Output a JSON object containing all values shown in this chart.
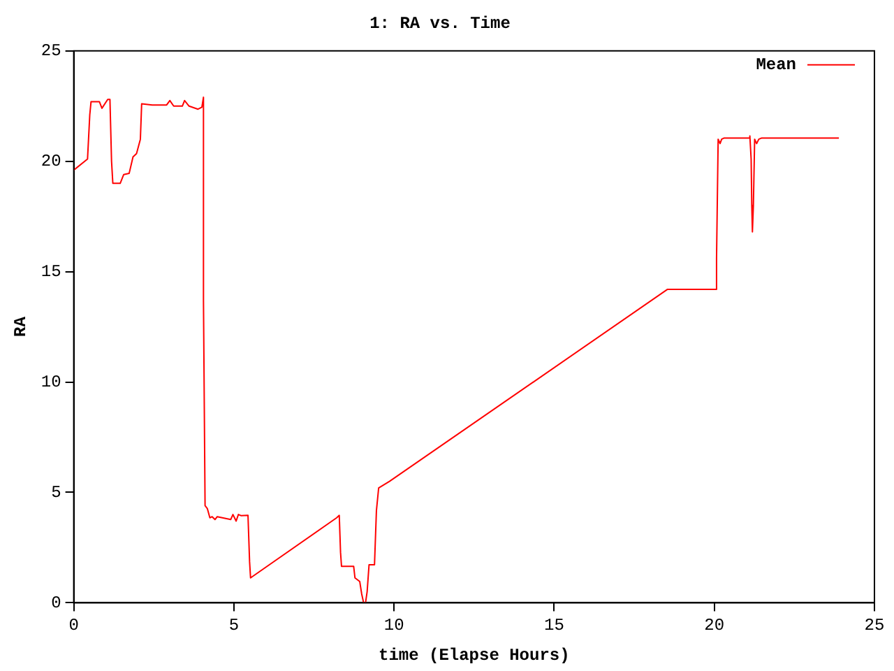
{
  "chart_data": {
    "type": "line",
    "title": "1: RA vs. Time",
    "xlabel": "time (Elapse Hours)",
    "ylabel": "RA",
    "xlim": [
      0,
      25
    ],
    "xticks": [
      0,
      5,
      10,
      15,
      20,
      25
    ],
    "ylim": [
      0,
      25
    ],
    "yticks": [
      0,
      5,
      10,
      15,
      20,
      25
    ],
    "grid": false,
    "legend": "top right",
    "marker": "none",
    "line_style": "solid",
    "series": [
      {
        "name": "Mean",
        "color": "#ff0000",
        "x": [
          0,
          0.43,
          0.5,
          0.54,
          0.8,
          0.88,
          1.06,
          1.13,
          1.18,
          1.22,
          1.45,
          1.56,
          1.73,
          1.85,
          1.96,
          2.08,
          2.12,
          2.45,
          2.9,
          3.0,
          3.12,
          3.39,
          3.46,
          3.6,
          3.88,
          4.0,
          4.05,
          4.05,
          4.1,
          4.17,
          4.25,
          4.32,
          4.41,
          4.48,
          4.9,
          4.97,
          5.07,
          5.14,
          5.22,
          5.44,
          5.49,
          5.52,
          8.21,
          8.29,
          8.33,
          8.36,
          8.74,
          8.78,
          8.93,
          8.99,
          9.05,
          9.11,
          9.16,
          9.22,
          9.39,
          9.45,
          9.52,
          9.86,
          18.54,
          20.03,
          20.07,
          20.12,
          20.18,
          20.23,
          20.3,
          21.08,
          21.11,
          21.15,
          21.17,
          21.19,
          21.22,
          21.26,
          21.32,
          21.39,
          21.47,
          23.89
        ],
        "values": [
          19.6,
          20.1,
          22.1,
          22.7,
          22.7,
          22.4,
          22.8,
          22.8,
          20.0,
          19.0,
          19.0,
          19.4,
          19.45,
          20.2,
          20.35,
          21.0,
          22.6,
          22.55,
          22.55,
          22.75,
          22.5,
          22.5,
          22.75,
          22.5,
          22.36,
          22.45,
          22.9,
          13.7,
          4.4,
          4.27,
          3.85,
          3.9,
          3.77,
          3.9,
          3.77,
          4.0,
          3.7,
          4.0,
          3.95,
          3.96,
          1.86,
          1.13,
          3.85,
          3.96,
          2.28,
          1.65,
          1.65,
          1.13,
          0.96,
          0.4,
          0,
          0,
          0.5,
          1.72,
          1.72,
          4.17,
          5.2,
          5.5,
          14.2,
          14.2,
          15.6,
          21.0,
          20.8,
          21.0,
          21.05,
          21.05,
          21.15,
          20.1,
          18.0,
          16.8,
          18.0,
          21.0,
          20.8,
          21.0,
          21.05,
          21.05
        ]
      }
    ]
  }
}
